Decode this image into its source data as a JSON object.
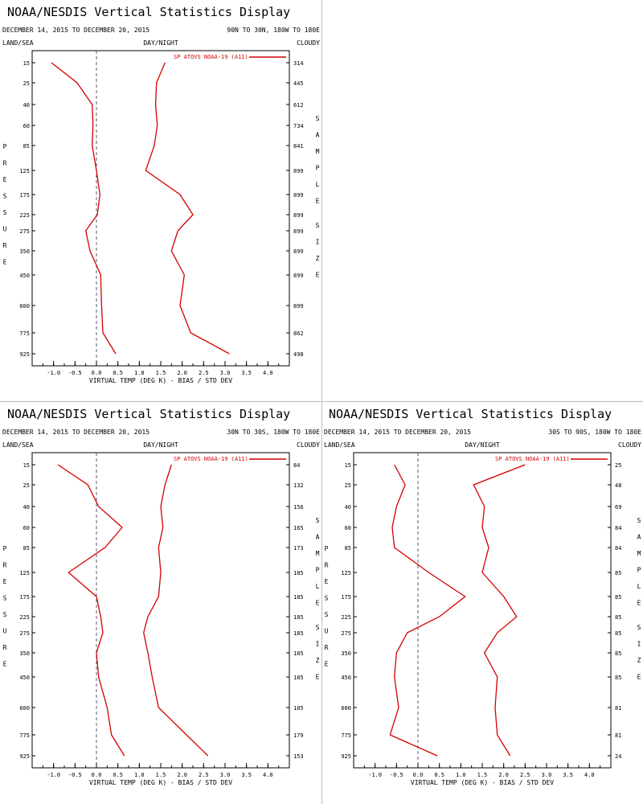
{
  "page": {
    "blank_panel_position": "top-right"
  },
  "colors": {
    "series": "#d40000",
    "axis": "#000000",
    "zero_line": "#5a5a78",
    "divider": "#bdbdbd"
  },
  "common": {
    "title": "NOAA/NESDIS Vertical Statistics Display",
    "date_range": "DECEMBER 14, 2015 TO DECEMBER 20, 2015",
    "land_sea": "LAND/SEA",
    "day_night": "DAY/NIGHT",
    "cloudy": "CLOUDY",
    "pressure_label": "PRESSURE",
    "sample_size_label": "SAMPLE SIZE",
    "legend": "SP ATOVS NOAA-19 (A11)",
    "xlabel": "VIRTUAL TEMP (DEG K) - BIAS / STD DEV",
    "pressure_levels": [
      "15",
      "25",
      "40",
      "60",
      "85",
      "125",
      "175",
      "225",
      "275",
      "350",
      "450",
      "600",
      "775",
      "925"
    ],
    "x_ticks": [
      "-1.0",
      "-0.5",
      "0.0",
      "0.5",
      "1.0",
      "1.5",
      "2.0",
      "2.5",
      "3.0",
      "3.5",
      "4.0"
    ]
  },
  "chart_data": [
    {
      "type": "line",
      "position": "top-left",
      "region": "90N TO 30N, 180W TO 180E",
      "xlim": [
        -1.5,
        4.5
      ],
      "y_levels_hPa": [
        15,
        25,
        40,
        60,
        85,
        125,
        175,
        225,
        275,
        350,
        450,
        600,
        775,
        925
      ],
      "series": [
        {
          "name": "BIAS",
          "values": [
            -1.05,
            -0.45,
            -0.1,
            -0.08,
            -0.1,
            0.0,
            0.08,
            0.02,
            -0.25,
            -0.15,
            0.1,
            0.12,
            0.15,
            0.45
          ]
        },
        {
          "name": "STD DEV",
          "values": [
            1.6,
            1.4,
            1.38,
            1.42,
            1.35,
            1.15,
            1.95,
            2.25,
            1.9,
            1.75,
            2.05,
            1.95,
            2.2,
            3.1
          ]
        }
      ],
      "sample_sizes": [
        "314",
        "445",
        "612",
        "734",
        "841",
        "899",
        "899",
        "899",
        "899",
        "899",
        "899",
        "899",
        "862",
        "498"
      ]
    },
    {
      "type": "line",
      "position": "bottom-left",
      "region": "30N TO 30S, 180W TO 180E",
      "xlim": [
        -1.5,
        4.5
      ],
      "y_levels_hPa": [
        15,
        25,
        40,
        60,
        85,
        125,
        175,
        225,
        275,
        350,
        450,
        600,
        775,
        925
      ],
      "series": [
        {
          "name": "BIAS",
          "values": [
            -0.9,
            -0.2,
            0.05,
            0.6,
            0.2,
            -0.65,
            0.0,
            0.1,
            0.15,
            0.0,
            0.05,
            0.25,
            0.35,
            0.65
          ]
        },
        {
          "name": "STD DEV",
          "values": [
            1.75,
            1.6,
            1.5,
            1.55,
            1.45,
            1.5,
            1.45,
            1.2,
            1.1,
            1.2,
            1.3,
            1.45,
            2.1,
            2.6
          ]
        }
      ],
      "sample_sizes": [
        "84",
        "132",
        "156",
        "165",
        "173",
        "185",
        "185",
        "185",
        "185",
        "185",
        "185",
        "185",
        "179",
        "153"
      ]
    },
    {
      "type": "line",
      "position": "bottom-right",
      "region": "30S TO 90S, 180W TO 180E",
      "xlim": [
        -1.5,
        4.5
      ],
      "y_levels_hPa": [
        15,
        25,
        40,
        60,
        85,
        125,
        175,
        225,
        275,
        350,
        450,
        600,
        775,
        925
      ],
      "series": [
        {
          "name": "BIAS",
          "values": [
            -0.55,
            -0.3,
            -0.5,
            -0.6,
            -0.55,
            0.25,
            1.1,
            0.5,
            -0.25,
            -0.5,
            -0.55,
            -0.45,
            -0.65,
            0.45
          ]
        },
        {
          "name": "STD DEV",
          "values": [
            2.5,
            1.3,
            1.55,
            1.5,
            1.65,
            1.5,
            2.0,
            2.3,
            1.85,
            1.55,
            1.85,
            1.8,
            1.85,
            2.15
          ]
        }
      ],
      "sample_sizes": [
        "25",
        "48",
        "69",
        "84",
        "84",
        "85",
        "85",
        "85",
        "85",
        "85",
        "85",
        "81",
        "81",
        "24"
      ]
    }
  ]
}
